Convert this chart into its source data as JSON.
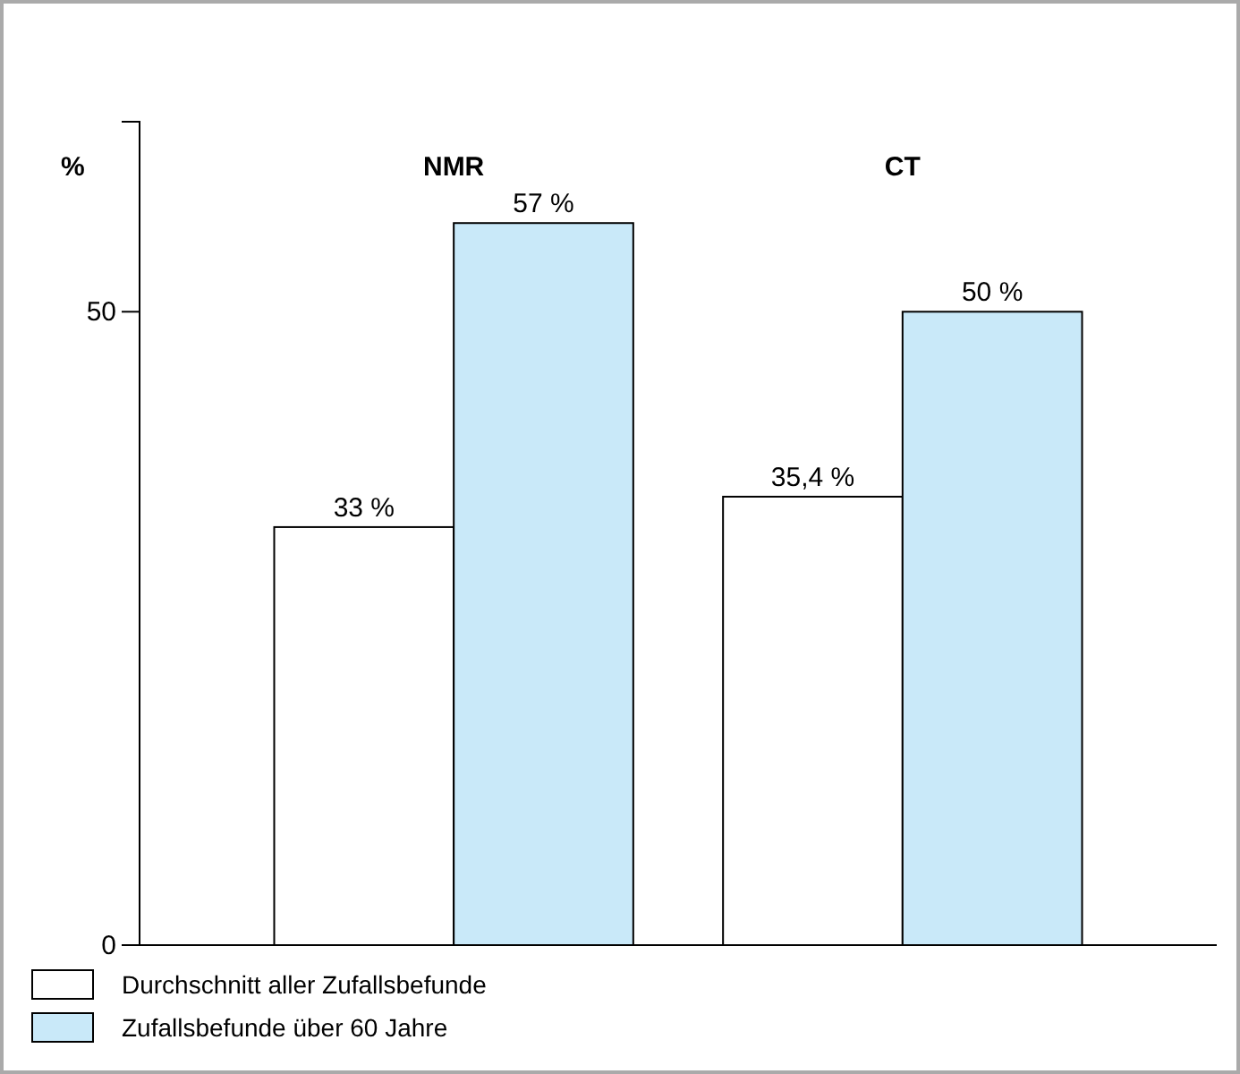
{
  "chart_data": {
    "type": "bar",
    "ylabel": "%",
    "categories": [
      "NMR",
      "CT"
    ],
    "series": [
      {
        "name": "Durchschnitt aller Zufallsbefunde",
        "color": "#ffffff",
        "values": [
          33,
          35.4
        ],
        "value_labels": [
          "33 %",
          "35,4 %"
        ]
      },
      {
        "name": "Zufallsbefunde über 60 Jahre",
        "color": "#c9e9f9",
        "values": [
          57,
          50
        ],
        "value_labels": [
          "57 %",
          "50 %"
        ]
      }
    ],
    "ylim": [
      0,
      65
    ],
    "yticks": [
      0,
      50
    ],
    "grid": false,
    "legend": "bottom left"
  }
}
